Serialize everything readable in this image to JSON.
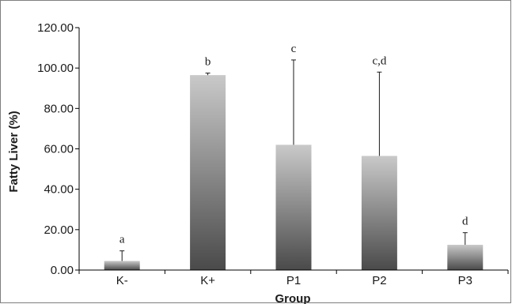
{
  "chart_data": {
    "type": "bar",
    "title": "",
    "xlabel": "Group",
    "ylabel": "Fatty Liver (%)",
    "ylim": [
      0,
      120
    ],
    "yticks": [
      "0.00",
      "20.00",
      "40.00",
      "60.00",
      "80.00",
      "100.00",
      "120.00"
    ],
    "categories": [
      "K-",
      "K+",
      "P1",
      "P2",
      "P3"
    ],
    "values": [
      4.5,
      96.5,
      62.0,
      56.5,
      12.5
    ],
    "error_upper": [
      5.0,
      1.0,
      42.0,
      41.5,
      6.0
    ],
    "significance_labels": [
      "a",
      "b",
      "c",
      "c,d",
      "d"
    ],
    "grid": false,
    "legend": "none",
    "colors": {
      "bar_top": "#c9c9c9",
      "bar_bottom": "#4a4a4a",
      "axis": "#000000",
      "frame": "#7f7f7f"
    }
  }
}
